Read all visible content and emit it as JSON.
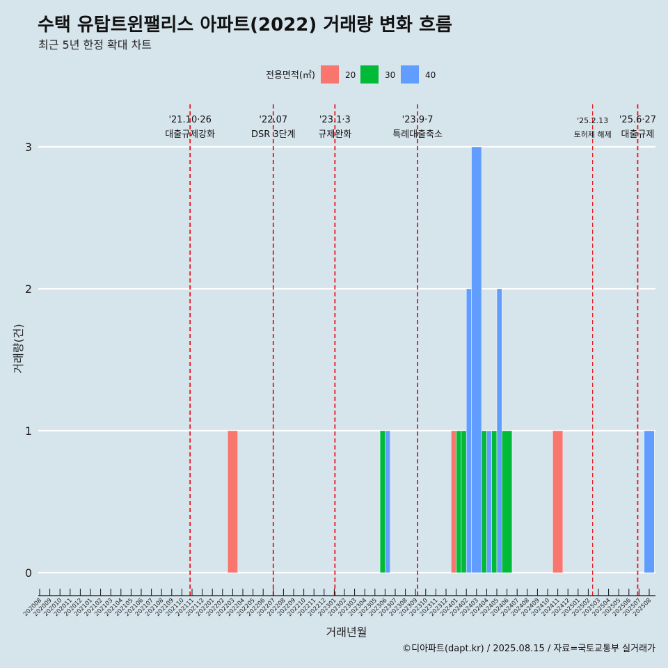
{
  "chart_data": {
    "type": "bar",
    "title": "수택 유탑트윈팰리스 아파트(2022) 거래량 변화 흐름",
    "subtitle": "최근 5년 한정 확대 차트",
    "xlabel": "거래년월",
    "ylabel": "거래량(건)",
    "caption": "©디아파트(dapt.kr) / 2025.08.15 / 자료=국토교통부 실거래가",
    "legend": {
      "title": "전용면적(㎡)",
      "position": "top",
      "entries": [
        {
          "name": "20",
          "color": "#f8766d"
        },
        {
          "name": "30",
          "color": "#00ba38"
        },
        {
          "name": "40",
          "color": "#619cff"
        }
      ]
    },
    "ylim": [
      0,
      3
    ],
    "yticks": [
      0,
      1,
      2,
      3
    ],
    "x_start": "202008",
    "x_end": "202508",
    "x_tick_labels": [
      "202008",
      "202009",
      "202010",
      "202011",
      "202012",
      "202101",
      "202102",
      "202103",
      "202104",
      "202105",
      "202106",
      "202107",
      "202108",
      "202109",
      "202110",
      "202111",
      "202112",
      "202201",
      "202202",
      "202203",
      "202204",
      "202205",
      "202206",
      "202207",
      "202208",
      "202209",
      "202210",
      "202211",
      "202212",
      "202301",
      "202302",
      "202303",
      "202304",
      "202305",
      "202306",
      "202307",
      "202308",
      "202309",
      "202310",
      "202311",
      "202312",
      "202401",
      "202402",
      "202403",
      "202404",
      "202405",
      "202406",
      "202407",
      "202408",
      "202409",
      "202410",
      "202411",
      "202412",
      "202501",
      "202502",
      "202503",
      "202504",
      "202505",
      "202506",
      "202507",
      "202508"
    ],
    "bars": [
      {
        "month": "202203",
        "area": "20",
        "value": 1
      },
      {
        "month": "202306",
        "area": "30",
        "value": 1
      },
      {
        "month": "202306",
        "area": "40",
        "value": 1
      },
      {
        "month": "202401",
        "area": "20",
        "value": 1
      },
      {
        "month": "202401",
        "area": "30",
        "value": 1
      },
      {
        "month": "202402",
        "area": "30",
        "value": 1
      },
      {
        "month": "202402",
        "area": "40",
        "value": 2
      },
      {
        "month": "202403",
        "area": "40",
        "value": 3
      },
      {
        "month": "202404",
        "area": "30",
        "value": 1
      },
      {
        "month": "202404",
        "area": "40",
        "value": 1
      },
      {
        "month": "202405",
        "area": "30",
        "value": 1
      },
      {
        "month": "202405",
        "area": "40",
        "value": 2
      },
      {
        "month": "202406",
        "area": "30",
        "value": 1
      },
      {
        "month": "202411",
        "area": "20",
        "value": 1
      },
      {
        "month": "202508",
        "area": "40",
        "value": 1
      }
    ],
    "annotations": [
      {
        "date": "2021-10-26",
        "line1": "'21.10·26",
        "line2": "대출규제강화"
      },
      {
        "date": "2022-07-01",
        "line1": "'22.07",
        "line2": "DSR 3단계"
      },
      {
        "date": "2023-01-03",
        "line1": "'23.1·3",
        "line2": "규제완화"
      },
      {
        "date": "2023-09-07",
        "line1": "'23.9·7",
        "line2": "특례대출축소"
      },
      {
        "date": "2025-02-13",
        "line1": "'25.2.13",
        "line2": "토허제 해제"
      },
      {
        "date": "2025-06-27",
        "line1": "'25.6·27",
        "line2": "대출규제"
      }
    ],
    "colors": {
      "background": "#d6e4ec",
      "gridline": "#ffffff",
      "vline": "#e8151b"
    }
  }
}
